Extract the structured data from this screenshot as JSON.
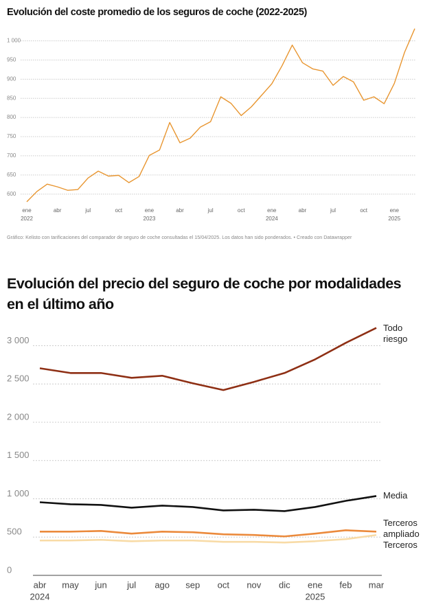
{
  "chart_data": [
    {
      "type": "line",
      "title": "Evolución del coste promedio de los seguros de coche (2022-2025)",
      "categories": [
        "ene",
        null,
        null,
        "abr",
        null,
        null,
        "jul",
        null,
        null,
        "oct",
        null,
        null,
        "ene",
        null,
        null,
        "abr",
        null,
        null,
        "jul",
        null,
        null,
        "oct",
        null,
        null,
        "ene",
        null,
        null,
        "abr",
        null,
        null,
        "jul",
        null,
        null,
        "oct",
        null,
        null,
        "ene",
        null,
        null
      ],
      "x_sublabels": [
        "2022",
        null,
        null,
        null,
        null,
        null,
        null,
        null,
        null,
        null,
        null,
        null,
        "2023",
        null,
        null,
        null,
        null,
        null,
        null,
        null,
        null,
        null,
        null,
        null,
        "2024",
        null,
        null,
        null,
        null,
        null,
        null,
        null,
        null,
        null,
        null,
        null,
        "2025",
        null,
        null
      ],
      "values": [
        580,
        607,
        626,
        619,
        610,
        612,
        642,
        660,
        647,
        649,
        630,
        646,
        701,
        715,
        787,
        734,
        746,
        775,
        789,
        854,
        837,
        805,
        828,
        858,
        888,
        935,
        989,
        943,
        927,
        921,
        884,
        907,
        893,
        845,
        854,
        836,
        889,
        970,
        1032
      ],
      "color": "#e8952f",
      "ylim": [
        578,
        1035
      ],
      "yticks": [
        600,
        650,
        700,
        750,
        800,
        850,
        900,
        950,
        {
          "value": 1000,
          "label": "1 000"
        }
      ],
      "grid": true,
      "source": "Gráfico: Kelisto con tarificaciones del comparador de seguro de coche consultadas el 15/04/2025. Los datos han sido ponderados. • Creado con Datawrapper"
    },
    {
      "type": "line",
      "title": "Evolución del precio del seguro de coche por modalidades en el último año",
      "categories": [
        "abr",
        "may",
        "jun",
        "jul",
        "ago",
        "sep",
        "oct",
        "nov",
        "dic",
        "ene",
        "feb",
        "mar"
      ],
      "x_sublabels": [
        "2024",
        null,
        null,
        null,
        null,
        null,
        null,
        null,
        null,
        "2025",
        null,
        null
      ],
      "series": [
        {
          "name": "Todo riesgo",
          "color": "#8e2f14",
          "values": [
            2705,
            2643,
            2643,
            2580,
            2607,
            2509,
            2420,
            2527,
            2643,
            2821,
            3036,
            3232
          ]
        },
        {
          "name": "Media",
          "color": "#111111",
          "values": [
            955,
            929,
            920,
            884,
            911,
            893,
            848,
            857,
            839,
            893,
            973,
            1036
          ]
        },
        {
          "name": "Terceros ampliado",
          "color": "#eb8a3c",
          "values": [
            571,
            571,
            580,
            545,
            571,
            563,
            536,
            527,
            509,
            545,
            589,
            571
          ]
        },
        {
          "name": "Terceros",
          "color": "#f8dba6",
          "values": [
            455,
            455,
            464,
            446,
            455,
            455,
            438,
            438,
            429,
            446,
            473,
            527
          ]
        }
      ],
      "ylim": [
        0,
        3300
      ],
      "yticks": [
        0,
        500,
        {
          "value": 1000,
          "label": "1 000"
        },
        {
          "value": 1500,
          "label": "1 500"
        },
        {
          "value": 2000,
          "label": "2 000"
        },
        {
          "value": 2500,
          "label": "2 500"
        },
        {
          "value": 3000,
          "label": "3 000"
        }
      ],
      "grid": true
    }
  ]
}
